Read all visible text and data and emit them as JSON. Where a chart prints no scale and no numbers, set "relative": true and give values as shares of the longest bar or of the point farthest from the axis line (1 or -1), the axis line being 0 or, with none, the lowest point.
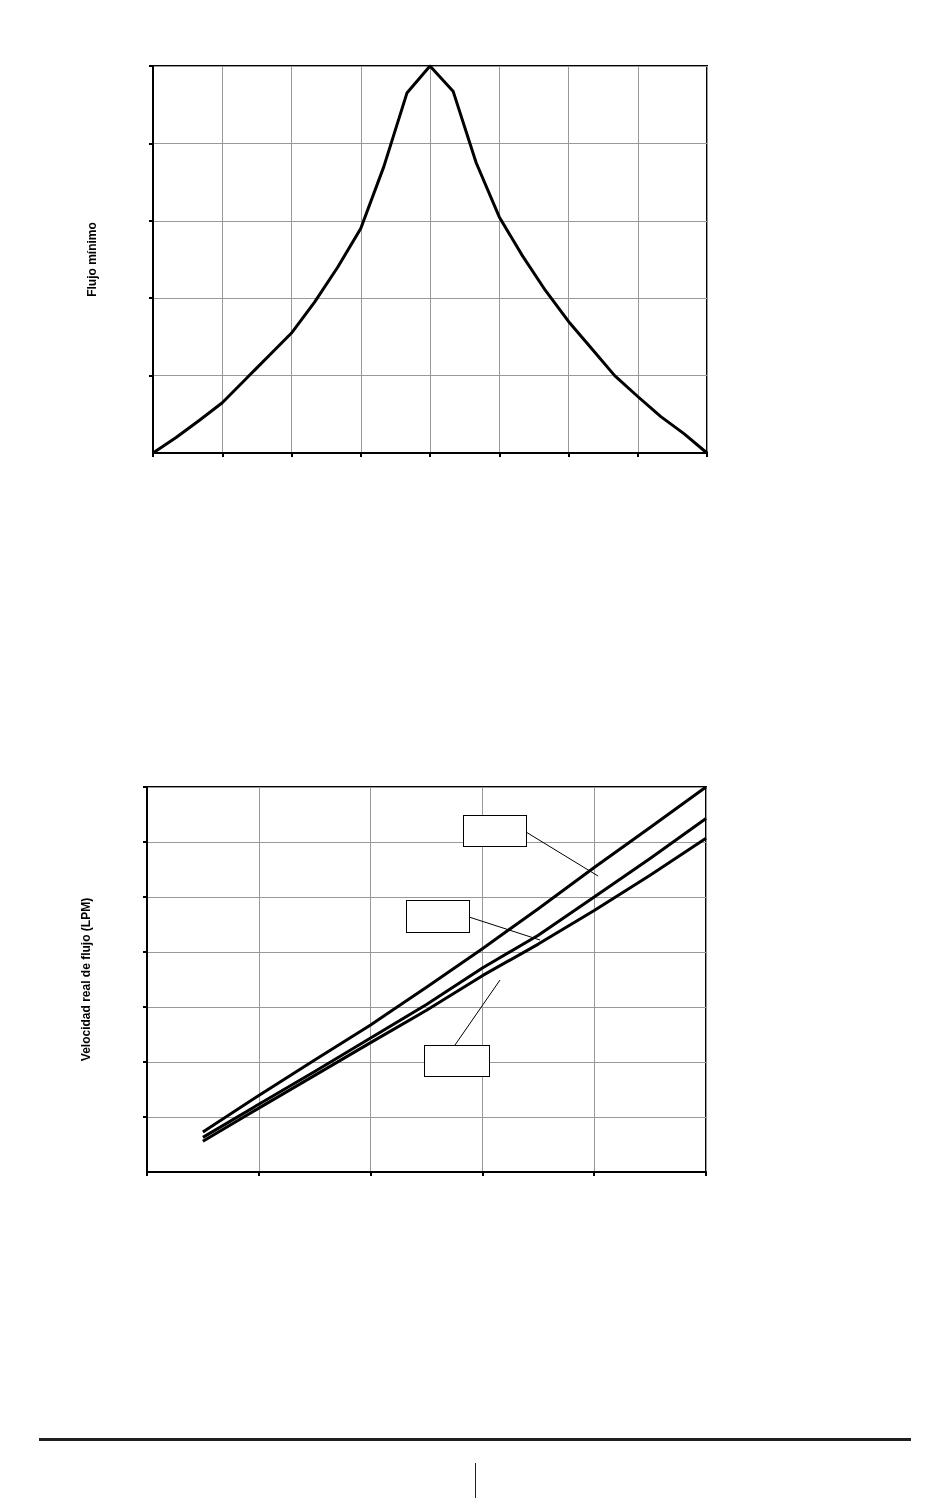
{
  "chart_data": [
    {
      "type": "line",
      "relative": true,
      "ylabel": "Flujo mínimo",
      "grid": true,
      "categories": [
        null,
        null,
        null,
        null,
        null,
        null,
        null,
        null,
        null,
        null,
        null,
        null,
        null,
        null,
        null,
        null,
        null,
        null,
        null,
        null,
        null,
        null,
        null,
        null,
        null
      ],
      "series": [
        {
          "color": "#000000",
          "values": [
            0,
            0.04,
            0.084,
            0.13,
            0.19,
            0.25,
            0.31,
            0.39,
            0.48,
            0.58,
            0.74,
            0.93,
            1.0,
            0.935,
            0.75,
            0.61,
            0.51,
            0.42,
            0.34,
            0.27,
            0.2,
            0.146,
            0.094,
            0.05,
            0
          ]
        }
      ]
    },
    {
      "type": "line",
      "relative": true,
      "ylabel": "Velocidad real de flujo (LPM)",
      "grid": true,
      "categories": [
        null,
        null,
        null,
        null,
        null,
        null,
        null,
        null,
        null,
        null,
        null
      ],
      "series": [
        {
          "color": "#000000",
          "values": [
            null,
            0.104,
            0.199,
            0.291,
            0.382,
            0.48,
            0.58,
            0.684,
            0.791,
            0.895,
            1.0
          ]
        },
        {
          "color": "#000000",
          "values": [
            null,
            0.09,
            0.176,
            0.261,
            0.348,
            0.435,
            0.53,
            0.615,
            0.714,
            0.814,
            0.918
          ]
        },
        {
          "color": "#000000",
          "values": [
            null,
            0.08,
            0.166,
            0.251,
            0.336,
            0.42,
            0.51,
            0.592,
            0.679,
            0.771,
            0.867
          ]
        }
      ]
    }
  ]
}
